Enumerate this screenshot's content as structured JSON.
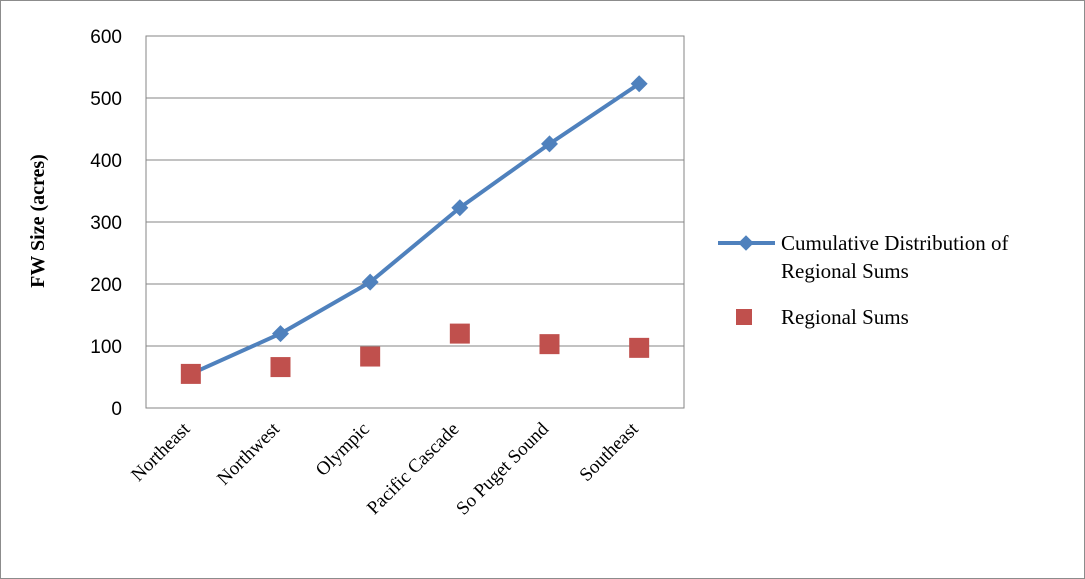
{
  "chart_data": {
    "type": "line",
    "title": "",
    "xlabel": "",
    "ylabel": "FW Size (acres)",
    "ylim": [
      0,
      600
    ],
    "y_ticks": [
      0,
      100,
      200,
      300,
      400,
      500,
      600
    ],
    "grid": "horizontal",
    "legend_position": "right",
    "categories": [
      "Northeast",
      "Northwest",
      "Olympic",
      "Pacific Cascade",
      "So Puget Sound",
      "Southeast"
    ],
    "series": [
      {
        "name": "Cumulative Distribution of Regional Sums",
        "legend_lines": [
          "Cumulative Distribution of",
          "Regional Sums"
        ],
        "style": "line-diamond",
        "color": "#4f81bd",
        "values": [
          55,
          120,
          203,
          323,
          426,
          523
        ]
      },
      {
        "name": "Regional Sums",
        "style": "square-marker",
        "color": "#c0504d",
        "values": [
          55,
          66,
          83,
          120,
          103,
          97
        ]
      }
    ]
  }
}
